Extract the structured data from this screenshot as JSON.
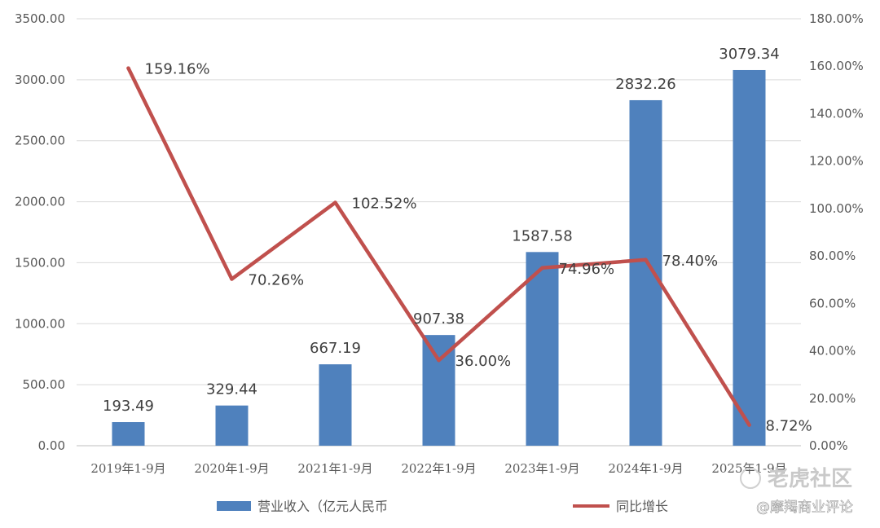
{
  "chart_data": {
    "type": "bar+line",
    "categories": [
      "2019年1-9月",
      "2020年1-9月",
      "2021年1-9月",
      "2022年1-9月",
      "2023年1-9月",
      "2024年1-9月",
      "2025年1-9月"
    ],
    "series": [
      {
        "name": "营业收入（亿元人民币",
        "type": "bar",
        "axis": "left",
        "color": "#4f81bd",
        "values": [
          193.49,
          329.44,
          667.19,
          907.38,
          1587.58,
          2832.26,
          3079.34
        ],
        "labels": [
          "193.49",
          "329.44",
          "667.19",
          "907.38",
          "1587.58",
          "2832.26",
          "3079.34"
        ]
      },
      {
        "name": "同比增长",
        "type": "line",
        "axis": "right",
        "color": "#c0504d",
        "values": [
          159.16,
          70.26,
          102.52,
          36.0,
          74.96,
          78.4,
          8.72
        ],
        "labels": [
          "159.16%",
          "70.26%",
          "102.52%",
          "36.00%",
          "74.96%",
          "78.40%",
          "8.72%"
        ]
      }
    ],
    "y_left": {
      "min": 0,
      "max": 3500,
      "ticks": [
        "0.00",
        "500.00",
        "1000.00",
        "1500.00",
        "2000.00",
        "2500.00",
        "3000.00",
        "3500.00"
      ]
    },
    "y_right": {
      "min": 0,
      "max": 180,
      "ticks": [
        "0.00%",
        "20.00%",
        "40.00%",
        "60.00%",
        "80.00%",
        "100.00%",
        "120.00%",
        "140.00%",
        "160.00%",
        "180.00%"
      ]
    },
    "grid": true,
    "legend_position": "bottom"
  },
  "watermark": {
    "brand": "老虎社区",
    "author": "@摩羯商业评论"
  }
}
